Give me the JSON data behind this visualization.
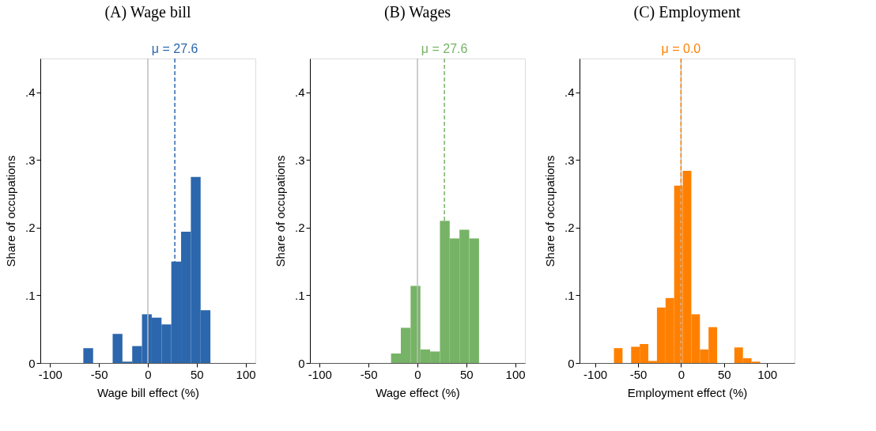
{
  "chart_data": [
    {
      "type": "histogram",
      "title": "(A) Wage bill",
      "xlabel": "Wage bill effect (%)",
      "ylabel": "Share of occupations",
      "color": "#2c67ad",
      "bins": [
        -66,
        -56,
        -46,
        -36,
        -26,
        -16,
        -6,
        4,
        14,
        24,
        34,
        44,
        54,
        64
      ],
      "values": [
        0.022,
        0,
        0,
        0.043,
        0.002,
        0.025,
        0.072,
        0.067,
        0.057,
        0.15,
        0.194,
        0.275,
        0.078
      ],
      "xlim": [
        -110,
        110
      ],
      "xticks": [
        -100,
        -50,
        0,
        50,
        100
      ],
      "ylim": [
        0,
        0.45
      ],
      "yticks": [
        0,
        {
          "value": 0.1,
          "label": ".1"
        },
        {
          "value": 0.2,
          "label": ".2"
        },
        {
          "value": 0.3,
          "label": ".3"
        },
        {
          "value": 0.4,
          "label": ".4"
        }
      ],
      "ref_lines": [
        {
          "axis": "x",
          "value": 0,
          "color": "#bdbdbd",
          "line_style": "solid"
        },
        {
          "axis": "x",
          "value": 27.6,
          "label": "μ = 27.6",
          "color": "#2c67ad",
          "line_style": "dashed"
        }
      ],
      "grid": false
    },
    {
      "type": "histogram",
      "title": "(B) Wages",
      "xlabel": "Wage effect (%)",
      "ylabel": "Share of occupations",
      "color": "#77b366",
      "bins": [
        -27,
        -17,
        -7,
        3,
        13,
        23,
        33,
        43,
        53,
        63
      ],
      "values": [
        0.014,
        0.052,
        0.114,
        0.02,
        0.017,
        0.21,
        0.184,
        0.197,
        0.184
      ],
      "xlim": [
        -110,
        110
      ],
      "xticks": [
        -100,
        -50,
        0,
        50,
        100
      ],
      "ylim": [
        0,
        0.45
      ],
      "yticks": [
        0,
        {
          "value": 0.1,
          "label": ".1"
        },
        {
          "value": 0.2,
          "label": ".2"
        },
        {
          "value": 0.3,
          "label": ".3"
        },
        {
          "value": 0.4,
          "label": ".4"
        }
      ],
      "ref_lines": [
        {
          "axis": "x",
          "value": 0,
          "color": "#bdbdbd",
          "line_style": "solid"
        },
        {
          "axis": "x",
          "value": 27.6,
          "label": "μ = 27.6",
          "color": "#77b366",
          "line_style": "dashed"
        }
      ],
      "grid": false
    },
    {
      "type": "histogram",
      "title": "(C) Employment",
      "xlabel": "Employment effect (%)",
      "ylabel": "Share of occupations",
      "color": "#ff8000",
      "bins": [
        -78,
        -68,
        -58,
        -48,
        -38,
        -28,
        -18,
        -8,
        2,
        12,
        22,
        32,
        42,
        52,
        62,
        72,
        82,
        92
      ],
      "values": [
        0.022,
        0,
        0.024,
        0.028,
        0.003,
        0.082,
        0.096,
        0.262,
        0.284,
        0.072,
        0.02,
        0.053,
        0,
        0,
        0.023,
        0.007,
        0.002
      ],
      "xlim": [
        -118,
        132
      ],
      "xticks": [
        -100,
        -50,
        0,
        50,
        100
      ],
      "ylim": [
        0,
        0.45
      ],
      "yticks": [
        0,
        {
          "value": 0.1,
          "label": ".1"
        },
        {
          "value": 0.2,
          "label": ".2"
        },
        {
          "value": 0.3,
          "label": ".3"
        },
        {
          "value": 0.4,
          "label": ".4"
        }
      ],
      "ref_lines": [
        {
          "axis": "x",
          "value": 0,
          "color": "#bdbdbd",
          "line_style": "solid"
        },
        {
          "axis": "x",
          "value": 0.0,
          "label": "μ = 0.0",
          "color": "#ff8000",
          "line_style": "dashed"
        }
      ],
      "grid": false
    }
  ]
}
